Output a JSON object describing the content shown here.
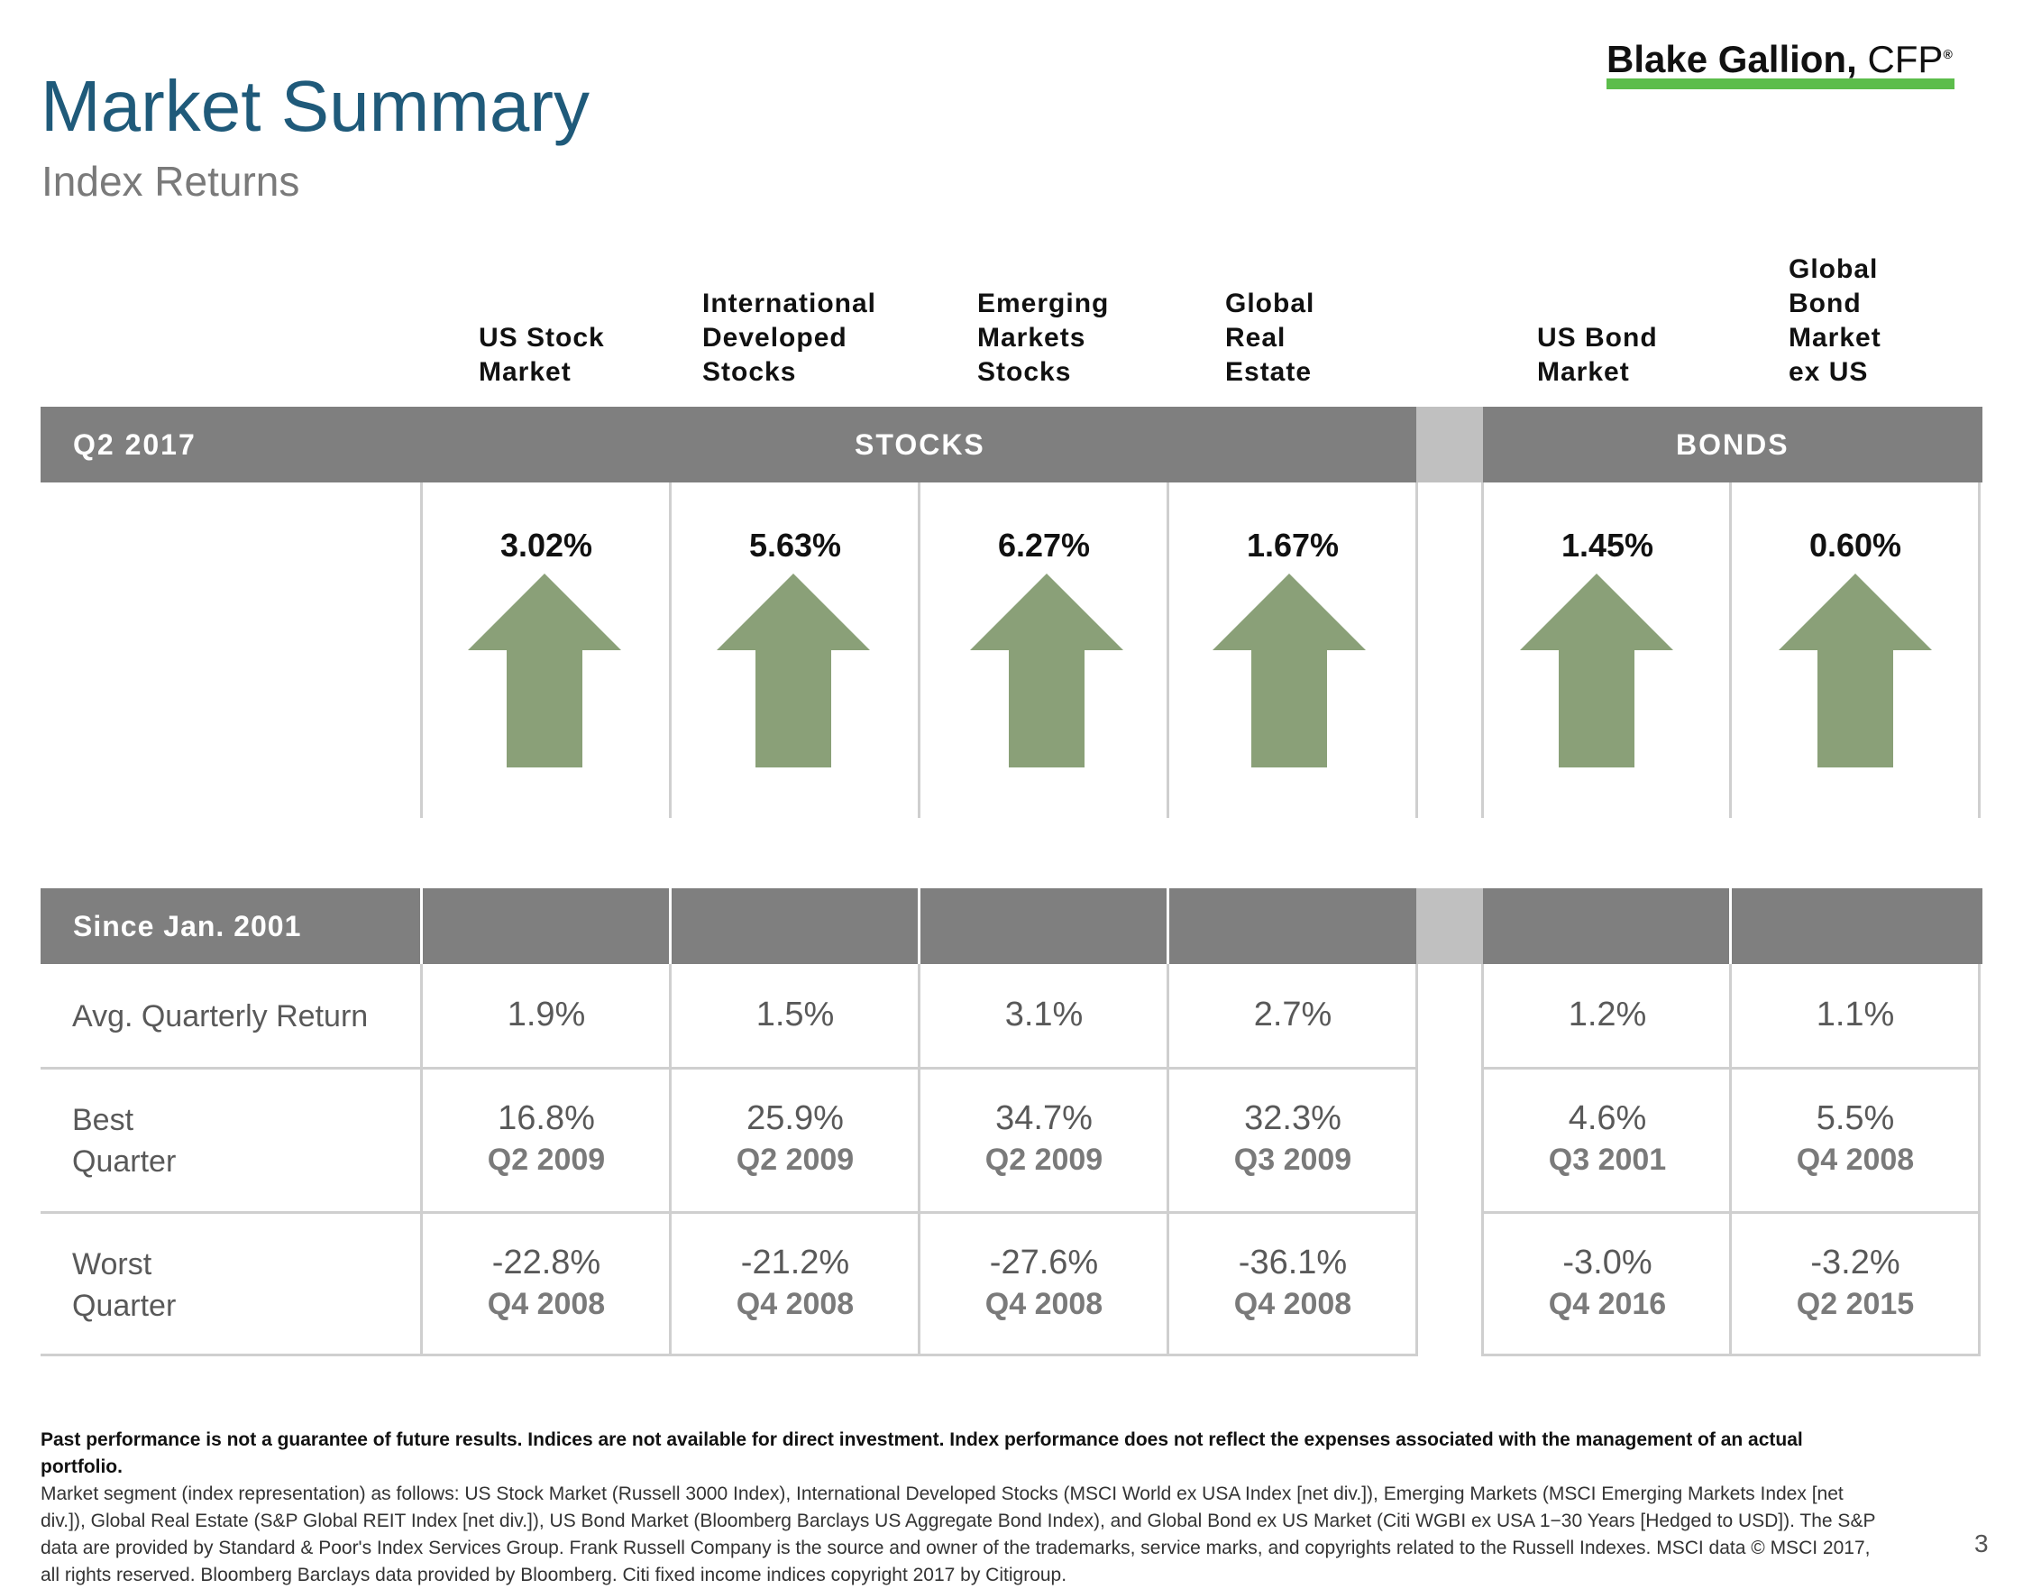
{
  "header": {
    "title": "Market Summary",
    "subtitle": "Index Returns",
    "brand_name": "Blake Gallion,",
    "brand_suffix": "CFP",
    "brand_reg": "®",
    "brand_color": "#5cbd4b"
  },
  "columns": [
    {
      "label": "US Stock\nMarket",
      "group": "stocks",
      "q2_return": "3.02%",
      "avg": "1.9%",
      "best_value": "16.8%",
      "best_quarter": "Q2 2009",
      "worst_value": "-22.8%",
      "worst_quarter": "Q4 2008",
      "direction": "up"
    },
    {
      "label": "International\nDeveloped\nStocks",
      "group": "stocks",
      "q2_return": "5.63%",
      "avg": "1.5%",
      "best_value": "25.9%",
      "best_quarter": "Q2 2009",
      "worst_value": "-21.2%",
      "worst_quarter": "Q4 2008",
      "direction": "up"
    },
    {
      "label": "Emerging\nMarkets\nStocks",
      "group": "stocks",
      "q2_return": "6.27%",
      "avg": "3.1%",
      "best_value": "34.7%",
      "best_quarter": "Q2 2009",
      "worst_value": "-27.6%",
      "worst_quarter": "Q4 2008",
      "direction": "up"
    },
    {
      "label": "Global\nReal\nEstate",
      "group": "stocks",
      "q2_return": "1.67%",
      "avg": "2.7%",
      "best_value": "32.3%",
      "best_quarter": "Q3 2009",
      "worst_value": "-36.1%",
      "worst_quarter": "Q4 2008",
      "direction": "up"
    },
    {
      "label": "US Bond\nMarket",
      "group": "bonds",
      "q2_return": "1.45%",
      "avg": "1.2%",
      "best_value": "4.6%",
      "best_quarter": "Q3 2001",
      "worst_value": "-3.0%",
      "worst_quarter": "Q4 2016",
      "direction": "up"
    },
    {
      "label": "Global\nBond\nMarket\nex US",
      "group": "bonds",
      "q2_return": "0.60%",
      "avg": "1.1%",
      "best_value": "5.5%",
      "best_quarter": "Q4 2008",
      "worst_value": "-3.2%",
      "worst_quarter": "Q2 2015",
      "direction": "up"
    }
  ],
  "period_bar": {
    "period": "Q2 2017",
    "stocks_label": "STOCKS",
    "bonds_label": "BONDS"
  },
  "since_bar": {
    "label": "Since Jan. 2001"
  },
  "rows": {
    "avg_label": "Avg. Quarterly Return",
    "best_label": "Best\nQuarter",
    "worst_label": "Worst\nQuarter"
  },
  "colors": {
    "arrow": "#8aa078",
    "bar": "#7f7f7f",
    "title": "#1f5a7a"
  },
  "footnote": {
    "bold": "Past performance is not a guarantee of future results. Indices are not available for direct investment. Index performance does not reflect the expenses associated with the management of an actual portfolio.",
    "text": "Market segment (index representation) as follows: US Stock Market (Russell 3000 Index), International Developed Stocks (MSCI World ex USA Index [net div.]), Emerging Markets (MSCI Emerging Markets Index [net div.]), Global Real Estate (S&P Global REIT Index [net div.]), US Bond Market (Bloomberg Barclays US Aggregate Bond Index), and Global Bond ex US Market (Citi WGBI ex USA 1−30 Years [Hedged to USD]). The S&P data are provided by Standard & Poor's Index Services Group. Frank Russell Company is the source and owner of the trademarks, service marks, and copyrights related to the Russell Indexes. MSCI data © MSCI 2017, all rights reserved. Bloomberg Barclays data provided by Bloomberg. Citi fixed income indices copyright 2017 by Citigroup."
  },
  "page_number": "3"
}
